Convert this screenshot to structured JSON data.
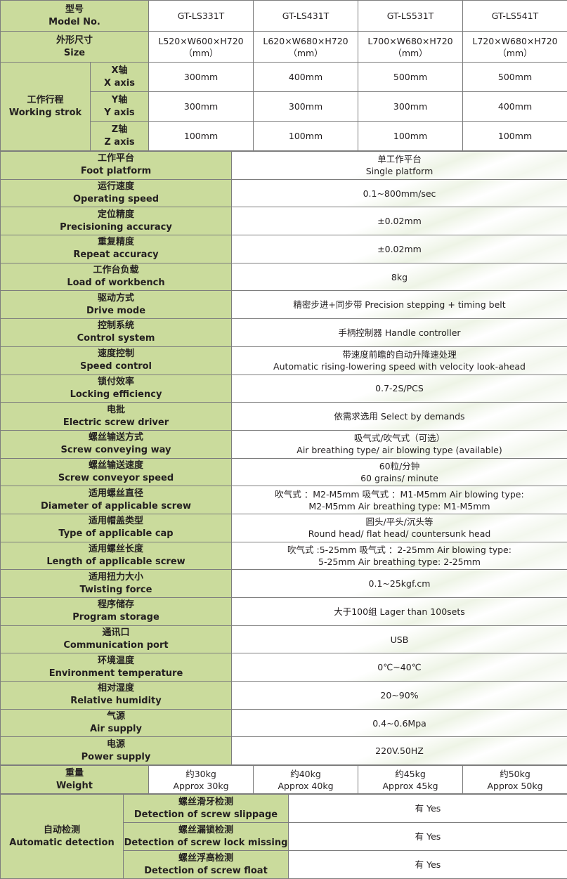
{
  "header": {
    "model": {
      "zh": "型号",
      "en": "Model No.",
      "values": [
        "GT-LS331T",
        "GT-LS431T",
        "GT-LS531T",
        "GT-LS541T"
      ]
    },
    "size": {
      "zh": "外形尺寸",
      "en": "Size",
      "values": [
        [
          "L520×W600×H720",
          "（mm）"
        ],
        [
          "L620×W680×H720",
          "（mm）"
        ],
        [
          "L700×W680×H720",
          "（mm）"
        ],
        [
          "L720×W680×H720",
          "（mm）"
        ]
      ]
    },
    "stroke": {
      "zh": "工作行程",
      "en": "Working strok",
      "axes": [
        {
          "zh": "X轴",
          "en": "X axis",
          "values": [
            "300mm",
            "400mm",
            "500mm",
            "500mm"
          ]
        },
        {
          "zh": "Y轴",
          "en": "Y axis",
          "values": [
            "300mm",
            "300mm",
            "300mm",
            "400mm"
          ]
        },
        {
          "zh": "Z轴",
          "en": "Z axis",
          "values": [
            "100mm",
            "100mm",
            "100mm",
            "100mm"
          ]
        }
      ]
    }
  },
  "specs": [
    {
      "zh": "工作平台",
      "en": "Foot platform",
      "value": [
        "单工作平台",
        "Single platform"
      ]
    },
    {
      "zh": "运行速度",
      "en": "Operating speed",
      "value": [
        "0.1~800mm/sec"
      ]
    },
    {
      "zh": "定位精度",
      "en": "Precisioning accuracy",
      "value": [
        "±0.02mm"
      ]
    },
    {
      "zh": "重复精度",
      "en": "Repeat accuracy",
      "value": [
        "±0.02mm"
      ]
    },
    {
      "zh": "工作台负载",
      "en": "Load of workbench",
      "value": [
        "8kg"
      ]
    },
    {
      "zh": "驱动方式",
      "en": "Drive mode",
      "value": [
        "精密步进+同步带 Precision stepping + timing belt"
      ]
    },
    {
      "zh": "控制系统",
      "en": "Control system",
      "value": [
        "手柄控制器 Handle controller"
      ]
    },
    {
      "zh": "速度控制",
      "en": "Speed control",
      "value": [
        "带速度前瞻的自动升降速处理",
        "Automatic rising-lowering speed with velocity look-ahead"
      ]
    },
    {
      "zh": "锁付效率",
      "en": "Locking efficiency",
      "value": [
        "0.7-2S/PCS"
      ]
    },
    {
      "zh": "电批",
      "en": "Electric screw driver",
      "value": [
        "依需求选用 Select by demands"
      ]
    },
    {
      "zh": "螺丝输送方式",
      "en": "Screw conveying way",
      "value": [
        "吸气式/吹气式（可选）",
        "Air breathing type/ air blowing type (available)"
      ]
    },
    {
      "zh": "螺丝输送速度",
      "en": "Screw conveyor speed",
      "value": [
        "60粒/分钟",
        "60 grains/ minute"
      ]
    },
    {
      "zh": "适用螺丝直径",
      "en": "Diameter of applicable screw",
      "value": [
        "吹气式 ：M2-M5mm 吸气式 ：M1-M5mm Air blowing type:",
        "M2-M5mm  Air breathing type: M1-M5mm"
      ]
    },
    {
      "zh": "适用帽盖类型",
      "en": "Type of applicable cap",
      "value": [
        "圆头/平头/沉头等",
        "Round head/ flat head/ countersunk head"
      ]
    },
    {
      "zh": "适用螺丝长度",
      "en": "Length of applicable screw",
      "value": [
        "吹气式 :5-25mm  吸气式 ：2-25mm Air blowing type:",
        "5-25mm  Air breathing type: 2-25mm"
      ]
    },
    {
      "zh": "适用扭力大小",
      "en": "Twisting force",
      "value": [
        "0.1~25kgf.cm"
      ]
    },
    {
      "zh": "程序储存",
      "en": "Program storage",
      "value": [
        "大于100组 Lager than 100sets"
      ]
    },
    {
      "zh": "通讯口",
      "en": "Communication port",
      "value": [
        "USB"
      ]
    },
    {
      "zh": "环境温度",
      "en": "Environment temperature",
      "value": [
        "0℃~40℃"
      ]
    },
    {
      "zh": "相对湿度",
      "en": "Relative humidity",
      "value": [
        "20~90%"
      ]
    },
    {
      "zh": "气源",
      "en": "Air supply",
      "value": [
        "0.4~0.6Mpa"
      ]
    },
    {
      "zh": "电源",
      "en": "Power supply",
      "value": [
        "220V.50HZ"
      ]
    }
  ],
  "weight": {
    "zh": "重量",
    "en": "Weight",
    "values": [
      [
        "约30kg",
        "Approx 30kg"
      ],
      [
        "约40kg",
        "Approx 40kg"
      ],
      [
        "约45kg",
        "Approx 45kg"
      ],
      [
        "约50kg",
        "Approx 50kg"
      ]
    ]
  },
  "detection": {
    "zh": "自动检测",
    "en": "Automatic detection",
    "items": [
      {
        "zh": "螺丝滑牙检测",
        "en": "Detection of screw slippage",
        "value": "有 Yes"
      },
      {
        "zh": "螺丝漏锁检测",
        "en": "Detection of screw lock missing",
        "value": "有 Yes"
      },
      {
        "zh": "螺丝浮高检测",
        "en": "Detection of screw float",
        "value": "有 Yes"
      }
    ]
  },
  "colors": {
    "label_bg": "#cadb9c",
    "border": "#7d7d7d",
    "text": "#231f20"
  }
}
